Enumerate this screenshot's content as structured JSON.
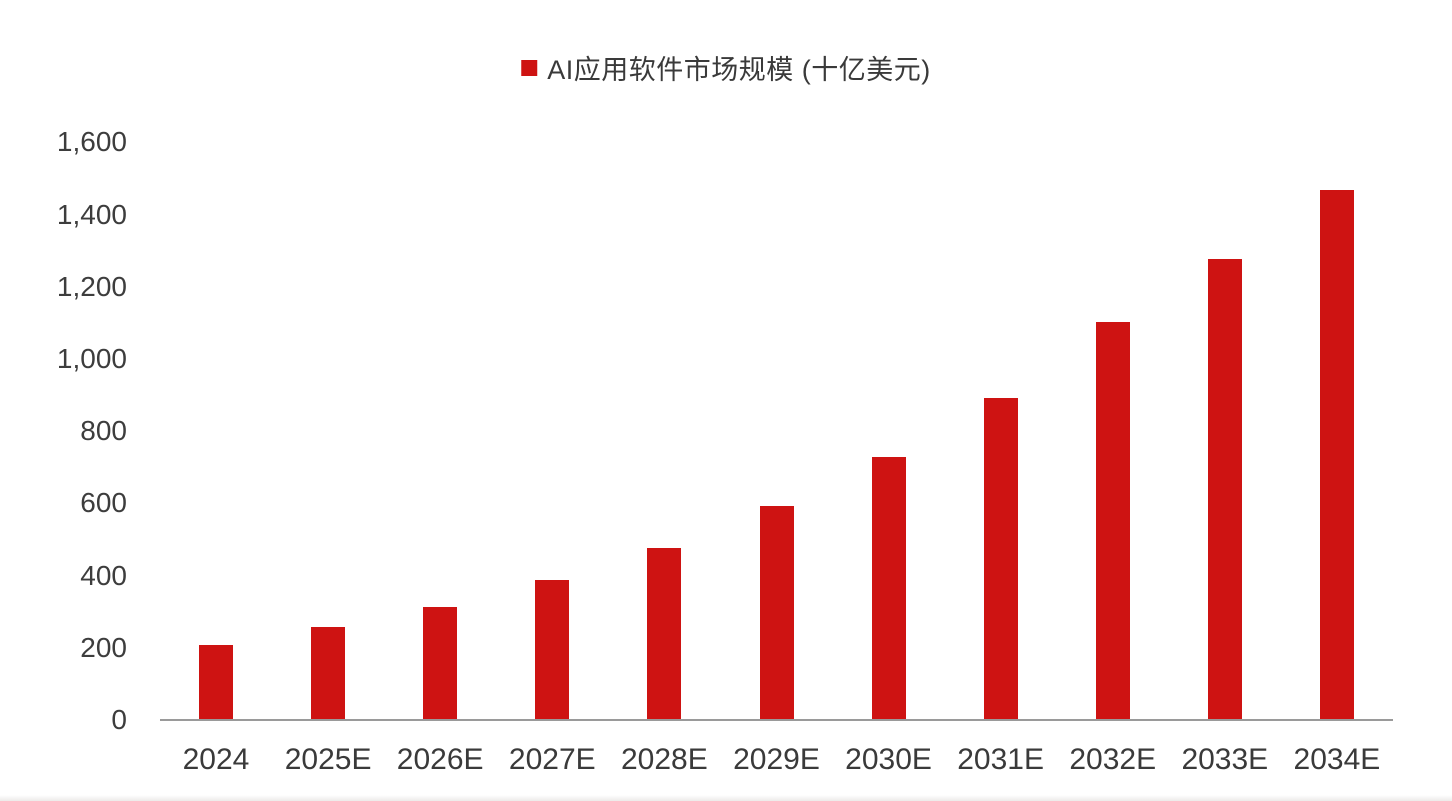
{
  "colors": {
    "bar": "#CE1312",
    "text": "#3a3a3a",
    "axis_line": "#9a9a9a",
    "background": "#ffffff"
  },
  "chart_data": {
    "type": "bar",
    "title": "AI应用软件市场规模 (十亿美元)",
    "legend": {
      "position": "top-center",
      "entries": [
        {
          "label": "AI应用软件市场规模 (十亿美元)",
          "swatch_color": "#CE1312"
        }
      ]
    },
    "categories": [
      "2024",
      "2025E",
      "2026E",
      "2027E",
      "2028E",
      "2029E",
      "2030E",
      "2031E",
      "2032E",
      "2033E",
      "2034E"
    ],
    "series": [
      {
        "name": "AI应用软件市场规模 (十亿美元)",
        "values": [
          205,
          255,
          310,
          385,
          475,
          590,
          725,
          890,
          1100,
          1275,
          1465
        ]
      }
    ],
    "xlabel": "",
    "ylabel": "",
    "ylim": [
      0,
      1600
    ],
    "ytick_interval": 200,
    "yticks": [
      {
        "label": "0",
        "value": 0
      },
      {
        "label": "200",
        "value": 200
      },
      {
        "label": "400",
        "value": 400
      },
      {
        "label": "600",
        "value": 600
      },
      {
        "label": "800",
        "value": 800
      },
      {
        "label": "1,000",
        "value": 1000
      },
      {
        "label": "1,200",
        "value": 1200
      },
      {
        "label": "1,400",
        "value": 1400
      },
      {
        "label": "1,600",
        "value": 1600
      }
    ],
    "grid": false
  }
}
